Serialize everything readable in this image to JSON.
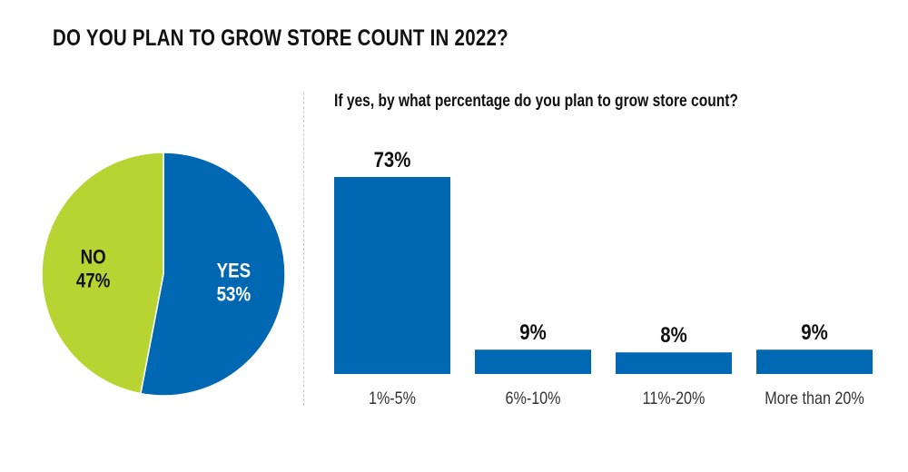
{
  "title": "DO YOU PLAN TO GROW STORE COUNT IN 2022?",
  "colors": {
    "blue": "#0067b3",
    "green": "#b8d432",
    "text": "#111111"
  },
  "chart_data": [
    {
      "type": "pie",
      "title": "DO YOU PLAN TO GROW STORE COUNT IN 2022?",
      "slices": [
        {
          "label": "YES",
          "value": 53,
          "value_label": "53%",
          "color": "#0067b3"
        },
        {
          "label": "NO",
          "value": 47,
          "value_label": "47%",
          "color": "#b8d432"
        }
      ]
    },
    {
      "type": "bar",
      "title": "If yes, by what percentage do you plan to grow store count?",
      "categories": [
        "1%-5%",
        "6%-10%",
        "11%-20%",
        "More than 20%"
      ],
      "values": [
        73,
        9,
        8,
        9
      ],
      "value_labels": [
        "73%",
        "9%",
        "8%",
        "9%"
      ],
      "color": "#0067b3",
      "ylim": [
        0,
        73
      ],
      "grid": false
    }
  ]
}
